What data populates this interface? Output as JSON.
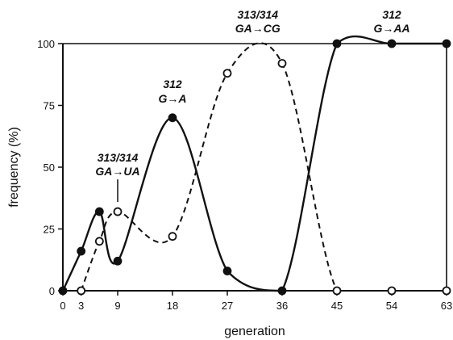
{
  "chart_data": {
    "type": "line",
    "xlabel": "generation",
    "ylabel": "frequency (%)",
    "xlim": [
      0,
      63
    ],
    "ylim": [
      0,
      100
    ],
    "xticks": [
      "0",
      "3",
      "9",
      "18",
      "27",
      "36",
      "45",
      "54",
      "63"
    ],
    "yticks": [
      "0",
      "25",
      "50",
      "75",
      "100"
    ],
    "grid": false,
    "series": [
      {
        "style": "solid, filled markers",
        "x": [
          0,
          3,
          6,
          9,
          18,
          27,
          36,
          45,
          54,
          63
        ],
        "y": [
          0,
          16,
          32,
          12,
          70,
          8,
          0,
          100,
          100,
          100
        ]
      },
      {
        "style": "dashed, open markers",
        "x": [
          3,
          6,
          9,
          18,
          27,
          36,
          45,
          54,
          63
        ],
        "y": [
          0,
          20,
          32,
          22,
          88,
          92,
          0,
          0,
          0
        ]
      }
    ],
    "annotations": [
      {
        "line1": "313/314",
        "line2": "GA→UA",
        "anchor_x": 9,
        "anchor_y": 32
      },
      {
        "line1": "312",
        "line2": "G→A",
        "anchor_x": 18,
        "anchor_y": 70
      },
      {
        "line1": "313/314",
        "line2": "GA→CG",
        "anchor_x": 32,
        "anchor_y": 100
      },
      {
        "line1": "312",
        "line2": "G→AA",
        "anchor_x": 54,
        "anchor_y": 100
      }
    ]
  }
}
